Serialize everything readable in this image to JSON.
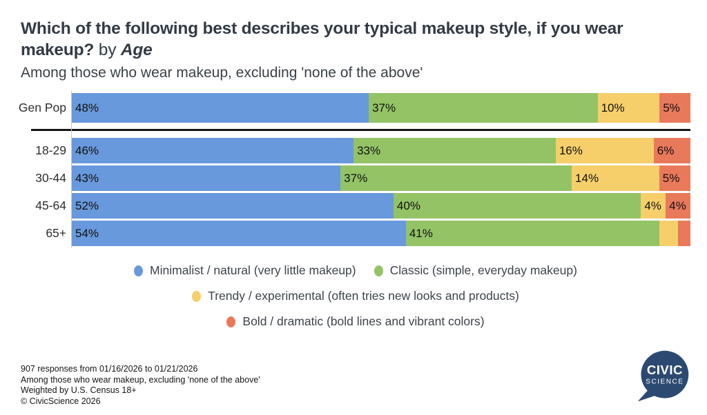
{
  "header": {
    "title_question": "Which of the following best describes your typical makeup style, if you wear makeup?",
    "title_connector": "by",
    "title_dimension": "Age",
    "subtitle": "Among those who wear makeup, excluding 'none of the above'"
  },
  "chart_data": {
    "type": "bar",
    "orientation": "horizontal",
    "stacked": true,
    "unit": "%",
    "xlim": [
      0,
      100
    ],
    "grid": false,
    "legend_position": "bottom",
    "categories": [
      "Gen Pop",
      "18-29",
      "30-44",
      "45-64",
      "65+"
    ],
    "series": [
      {
        "name": "Minimalist / natural (very little makeup)",
        "color": "#6899DC",
        "values": [
          48,
          46,
          43,
          52,
          54
        ]
      },
      {
        "name": "Classic (simple, everyday makeup)",
        "color": "#93C365",
        "values": [
          37,
          33,
          37,
          40,
          41
        ]
      },
      {
        "name": "Trendy / experimental (often tries new looks and products)",
        "color": "#F6CF6B",
        "values": [
          10,
          16,
          14,
          4,
          3
        ]
      },
      {
        "name": "Bold / dramatic (bold lines and vibrant colors)",
        "color": "#E9795B",
        "values": [
          5,
          6,
          5,
          4,
          2
        ]
      }
    ],
    "data_labels": [
      [
        "48%",
        "37%",
        "10%",
        "5%"
      ],
      [
        "46%",
        "33%",
        "16%",
        "6%"
      ],
      [
        "43%",
        "37%",
        "14%",
        "5%"
      ],
      [
        "52%",
        "40%",
        "4%",
        "4%"
      ],
      [
        "54%",
        "41%",
        "",
        ""
      ]
    ],
    "annotations": "Gen Pop row is separated from the age-group rows by a horizontal divider line"
  },
  "legend": {
    "items": [
      {
        "label": "Minimalist / natural (very little makeup)",
        "color": "#6899DC"
      },
      {
        "label": "Classic (simple, everyday makeup)",
        "color": "#93C365"
      },
      {
        "label": "Trendy / experimental (often tries new looks and products)",
        "color": "#F6CF6B"
      },
      {
        "label": "Bold / dramatic (bold lines and vibrant colors)",
        "color": "#E9795B"
      }
    ],
    "rows": [
      [
        0,
        1
      ],
      [
        2
      ],
      [
        3
      ]
    ]
  },
  "footer": {
    "lines": [
      "907 responses from 01/16/2026 to 01/21/2026",
      "Among those who wear makeup, excluding 'none of the above'",
      "Weighted by U.S. Census 18+",
      "© CivicScience 2026"
    ],
    "logo": {
      "line1": "CIVIC",
      "line2": "SCIENCE",
      "color": "#2C4A71"
    }
  }
}
